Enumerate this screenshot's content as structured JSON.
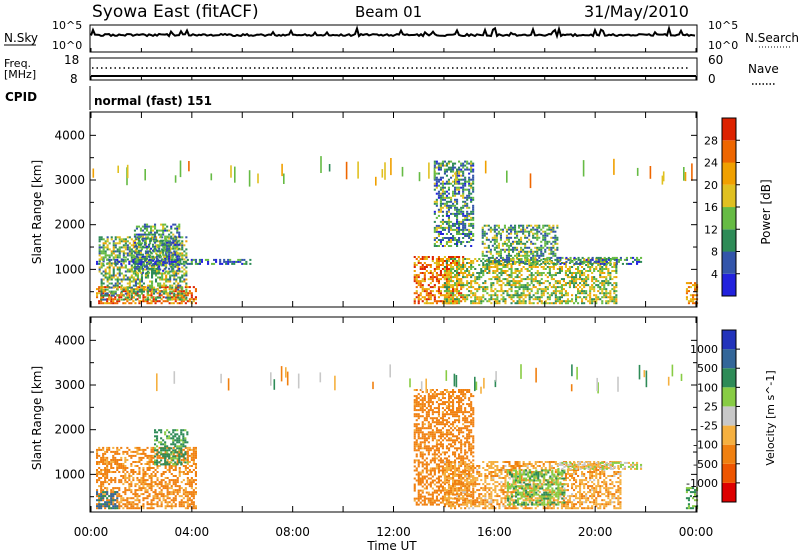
{
  "header": {
    "title": "Syowa East (fitACF)",
    "beam": "Beam 01",
    "date": "31/May/2010"
  },
  "noise_panel": {
    "left_label": "N.Sky",
    "right_label": "N.Search",
    "left_ticks": [
      "10^5",
      "10^0"
    ],
    "right_ticks": [
      "10^5",
      "10^0"
    ]
  },
  "freq_panel": {
    "left_label_line1": "Freq.",
    "left_label_line2": "[MHz]",
    "left_ticks": [
      "18",
      "8"
    ],
    "right_label": "Nave",
    "right_ticks": [
      "60",
      "0"
    ]
  },
  "cpid": {
    "label": "CPID",
    "value": "normal (fast) 151"
  },
  "colors": {
    "power_scale": [
      "#2222dd",
      "#3355aa",
      "#2e8b57",
      "#66bb44",
      "#e0c020",
      "#f0a000",
      "#ee6600",
      "#dd2200"
    ],
    "velocity_scale": [
      "#dd0000",
      "#ee5500",
      "#f08010",
      "#f5b040",
      "#c8c8c8",
      "#88cc44",
      "#2e8b57",
      "#336699",
      "#2233bb"
    ]
  },
  "chart_data": [
    {
      "type": "heatmap",
      "name": "power",
      "ylabel": "Slant Range [km]",
      "yticks": [
        1000,
        2000,
        3000,
        4000
      ],
      "ylim": [
        180,
        4500
      ],
      "xlim": [
        0,
        24
      ],
      "xticks": [
        0,
        2,
        4,
        6,
        8,
        10,
        12,
        14,
        16,
        18,
        20,
        22,
        24
      ],
      "colorbar": {
        "label": "Power [dB]",
        "ticks": [
          "4",
          "8",
          "12",
          "16",
          "20",
          "24",
          "28"
        ],
        "range": [
          0,
          30
        ]
      },
      "regions": [
        {
          "t": [
            0.2,
            4.2
          ],
          "r": [
            220,
            620
          ],
          "v": 25
        },
        {
          "t": [
            0.3,
            3.8
          ],
          "r": [
            300,
            1700
          ],
          "v": 13
        },
        {
          "t": [
            1.7,
            3.5
          ],
          "r": [
            900,
            2000
          ],
          "v": 9
        },
        {
          "t": [
            0.2,
            6.4
          ],
          "r": [
            1100,
            1200
          ],
          "v": 7
        },
        {
          "t": [
            12.8,
            14.8
          ],
          "r": [
            220,
            1300
          ],
          "v": 23
        },
        {
          "t": [
            13.6,
            15.2
          ],
          "r": [
            1500,
            3400
          ],
          "v": 10
        },
        {
          "t": [
            14.0,
            20.8
          ],
          "r": [
            220,
            1250
          ],
          "v": 15
        },
        {
          "t": [
            15.5,
            18.5
          ],
          "r": [
            1100,
            2000
          ],
          "v": 11
        },
        {
          "t": [
            18.5,
            21.8
          ],
          "r": [
            1100,
            1250
          ],
          "v": 8
        },
        {
          "t": [
            23.6,
            24.0
          ],
          "r": [
            220,
            700
          ],
          "v": 22
        }
      ]
    },
    {
      "type": "heatmap",
      "name": "velocity",
      "ylabel": "Slant Range [km]",
      "yticks": [
        1000,
        2000,
        3000,
        4000
      ],
      "ylim": [
        180,
        4500
      ],
      "xlim": [
        0,
        24
      ],
      "xticks": [
        0,
        2,
        4,
        6,
        8,
        10,
        12,
        14,
        16,
        18,
        20,
        22,
        24
      ],
      "colorbar": {
        "label": "Velocity [m s^-1]",
        "ticks": [
          "-1000",
          "-500",
          "-100",
          "-25",
          "25",
          "100",
          "500",
          "1000"
        ],
        "range": [
          -1200,
          1200
        ]
      },
      "regions": [
        {
          "t": [
            0.2,
            4.2
          ],
          "r": [
            220,
            1600
          ],
          "v": -150
        },
        {
          "t": [
            2.5,
            3.8
          ],
          "r": [
            1200,
            2000
          ],
          "v": 150
        },
        {
          "t": [
            0.2,
            1.0
          ],
          "r": [
            220,
            600
          ],
          "v": 600
        },
        {
          "t": [
            12.8,
            15.2
          ],
          "r": [
            300,
            2900
          ],
          "v": -250
        },
        {
          "t": [
            14.0,
            21.0
          ],
          "r": [
            220,
            1300
          ],
          "v": -80
        },
        {
          "t": [
            16.5,
            18.8
          ],
          "r": [
            300,
            1100
          ],
          "v": 80
        },
        {
          "t": [
            18.5,
            21.8
          ],
          "r": [
            1100,
            1250
          ],
          "v": 10
        },
        {
          "t": [
            23.6,
            24.0
          ],
          "r": [
            220,
            700
          ],
          "v": 80
        }
      ]
    }
  ],
  "xaxis": {
    "tick_labels": [
      "00:00",
      "04:00",
      "08:00",
      "12:00",
      "16:00",
      "20:00",
      "00:00"
    ],
    "label": "Time UT"
  }
}
